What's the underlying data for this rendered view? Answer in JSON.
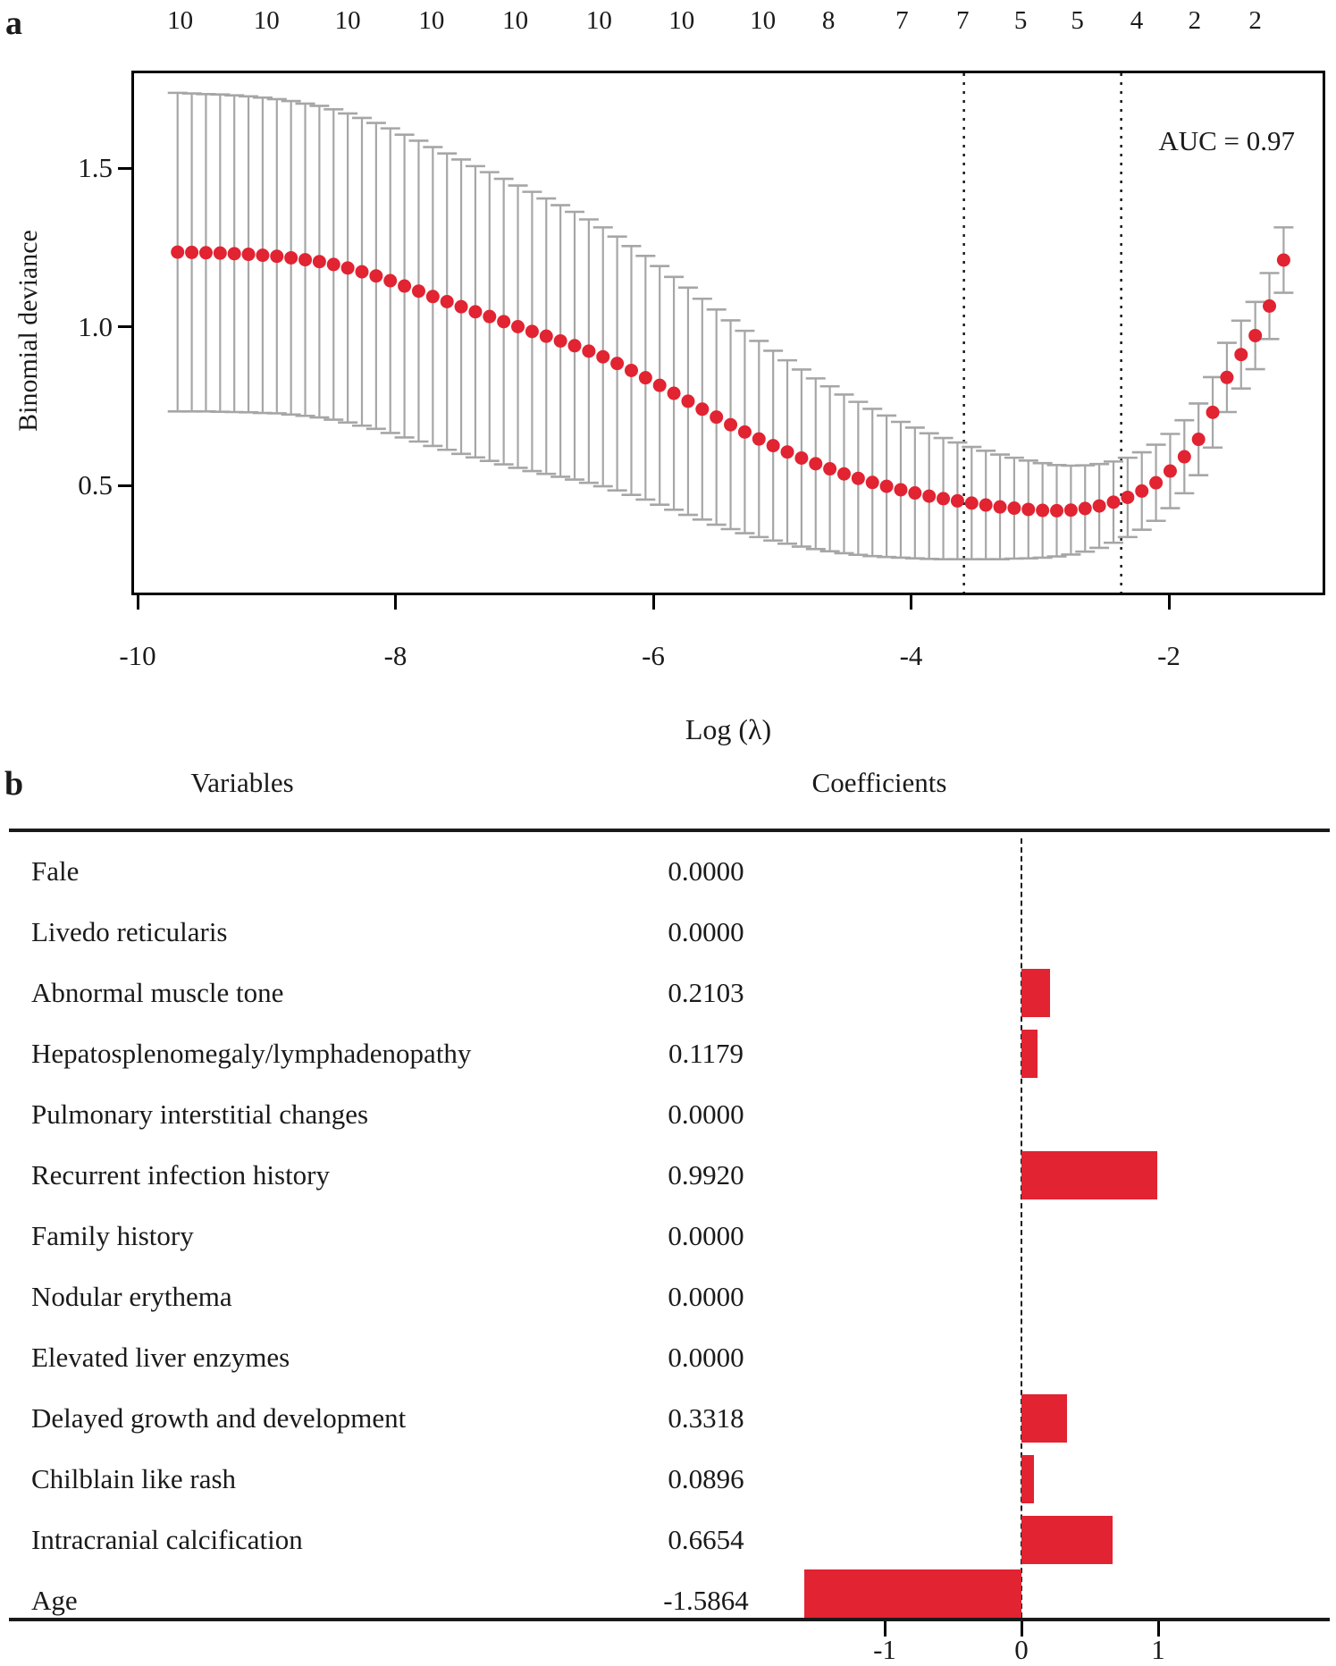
{
  "chart_data": [
    {
      "type": "scatter",
      "panel_label": "a",
      "ylabel": "Binomial deviance",
      "xlabel": "Log (λ)",
      "annotation": "AUC = 0.97",
      "x_ticks": [
        "-10",
        "-8",
        "-6",
        "-4",
        "-2"
      ],
      "x_tick_values": [
        -10,
        -8,
        -6,
        -4,
        -2
      ],
      "y_ticks": [
        "1.5",
        "1.0",
        "0.5"
      ],
      "y_tick_values": [
        1.5,
        1.0,
        0.5
      ],
      "xlim": [
        -10.03,
        -0.78
      ],
      "ylim": [
        0.16,
        1.8
      ],
      "grid": false,
      "top_axis": {
        "labels": [
          "10",
          "10",
          "10",
          "10",
          "10",
          "10",
          "10",
          "10",
          "8",
          "7",
          "7",
          "5",
          "5",
          "4",
          "2",
          "2"
        ],
        "log_lambda_positions": [
          -9.67,
          -9.0,
          -8.37,
          -7.72,
          -7.07,
          -6.42,
          -5.78,
          -5.15,
          -4.64,
          -4.07,
          -3.6,
          -3.15,
          -2.71,
          -2.25,
          -1.8,
          -1.33
        ]
      },
      "vlines": [
        -3.59,
        -2.37
      ],
      "series": [
        {
          "name": "binomial-deviance-mean-with-se",
          "x": [
            -9.69,
            -9.58,
            -9.47,
            -9.36,
            -9.25,
            -9.14,
            -9.03,
            -8.92,
            -8.81,
            -8.7,
            -8.59,
            -8.48,
            -8.37,
            -8.26,
            -8.15,
            -8.04,
            -7.93,
            -7.82,
            -7.71,
            -7.6,
            -7.49,
            -7.38,
            -7.27,
            -7.16,
            -7.05,
            -6.94,
            -6.83,
            -6.72,
            -6.61,
            -6.5,
            -6.39,
            -6.28,
            -6.17,
            -6.06,
            -5.95,
            -5.84,
            -5.73,
            -5.62,
            -5.51,
            -5.4,
            -5.29,
            -5.18,
            -5.07,
            -4.96,
            -4.85,
            -4.74,
            -4.63,
            -4.52,
            -4.41,
            -4.3,
            -4.19,
            -4.08,
            -3.97,
            -3.86,
            -3.75,
            -3.64,
            -3.53,
            -3.42,
            -3.31,
            -3.2,
            -3.09,
            -2.98,
            -2.87,
            -2.76,
            -2.65,
            -2.54,
            -2.43,
            -2.32,
            -2.21,
            -2.1,
            -1.99,
            -1.88,
            -1.77,
            -1.66,
            -1.55,
            -1.44,
            -1.33,
            -1.22,
            -1.11
          ],
          "mean": [
            1.235,
            1.234,
            1.233,
            1.232,
            1.23,
            1.228,
            1.225,
            1.222,
            1.217,
            1.211,
            1.205,
            1.196,
            1.185,
            1.173,
            1.16,
            1.145,
            1.128,
            1.112,
            1.095,
            1.079,
            1.063,
            1.047,
            1.032,
            1.016,
            1.0,
            0.985,
            0.97,
            0.955,
            0.94,
            0.923,
            0.905,
            0.884,
            0.862,
            0.839,
            0.815,
            0.79,
            0.765,
            0.74,
            0.715,
            0.691,
            0.668,
            0.646,
            0.625,
            0.605,
            0.586,
            0.568,
            0.552,
            0.536,
            0.522,
            0.509,
            0.497,
            0.486,
            0.476,
            0.466,
            0.458,
            0.451,
            0.444,
            0.438,
            0.432,
            0.428,
            0.424,
            0.421,
            0.42,
            0.422,
            0.427,
            0.435,
            0.447,
            0.462,
            0.482,
            0.508,
            0.545,
            0.59,
            0.645,
            0.73,
            0.84,
            0.912,
            0.972,
            1.065,
            1.21
          ],
          "se": [
            0.502,
            0.501,
            0.5,
            0.5,
            0.499,
            0.498,
            0.497,
            0.495,
            0.494,
            0.492,
            0.491,
            0.489,
            0.487,
            0.485,
            0.482,
            0.48,
            0.477,
            0.474,
            0.471,
            0.467,
            0.464,
            0.459,
            0.455,
            0.45,
            0.445,
            0.44,
            0.434,
            0.428,
            0.422,
            0.415,
            0.408,
            0.4,
            0.392,
            0.384,
            0.376,
            0.367,
            0.358,
            0.348,
            0.339,
            0.329,
            0.319,
            0.309,
            0.299,
            0.289,
            0.279,
            0.269,
            0.26,
            0.25,
            0.241,
            0.232,
            0.223,
            0.214,
            0.206,
            0.198,
            0.191,
            0.184,
            0.177,
            0.171,
            0.165,
            0.159,
            0.154,
            0.149,
            0.144,
            0.14,
            0.136,
            0.132,
            0.128,
            0.125,
            0.122,
            0.12,
            0.117,
            0.115,
            0.113,
            0.111,
            0.109,
            0.107,
            0.106,
            0.104,
            0.103
          ]
        }
      ],
      "colors": {
        "point": "#e12332",
        "error_bar": "#a6a6a6",
        "vline": "#1a1a1a",
        "axis": "#000000"
      }
    },
    {
      "type": "bar",
      "panel_label": "b",
      "orientation": "horizontal",
      "col_headers": [
        "Variables",
        "Coefficients"
      ],
      "rows": [
        {
          "variable": "Fale",
          "value_text": "0.0000",
          "coef": 0.0
        },
        {
          "variable": "Livedo reticularis",
          "value_text": "0.0000",
          "coef": 0.0
        },
        {
          "variable": "Abnormal muscle tone",
          "value_text": "0.2103",
          "coef": 0.2103
        },
        {
          "variable": "Hepatosplenomegaly/lymphadenopathy",
          "value_text": "0.1179",
          "coef": 0.1179
        },
        {
          "variable": "Pulmonary interstitial changes",
          "value_text": "0.0000",
          "coef": 0.0
        },
        {
          "variable": "Recurrent infection history",
          "value_text": "0.9920",
          "coef": 0.992
        },
        {
          "variable": "Family history",
          "value_text": "0.0000",
          "coef": 0.0
        },
        {
          "variable": "Nodular erythema",
          "value_text": "0.0000",
          "coef": 0.0
        },
        {
          "variable": "Elevated liver enzymes",
          "value_text": "0.0000",
          "coef": 0.0
        },
        {
          "variable": "Delayed growth and development",
          "value_text": "0.3318",
          "coef": 0.3318
        },
        {
          "variable": "Chilblain like rash",
          "value_text": "0.0896",
          "coef": 0.0896
        },
        {
          "variable": "Intracranial calcification",
          "value_text": "0.6654",
          "coef": 0.6654
        },
        {
          "variable": "Age",
          "value_text": "-1.5864",
          "coef": -1.5864
        }
      ],
      "x_ticks": [
        "-1",
        "0",
        "1"
      ],
      "x_tick_values": [
        -1,
        0,
        1
      ],
      "xlim": [
        -1.75,
        2.25
      ],
      "bar_color": "#e12332",
      "zero_line": 0
    }
  ]
}
